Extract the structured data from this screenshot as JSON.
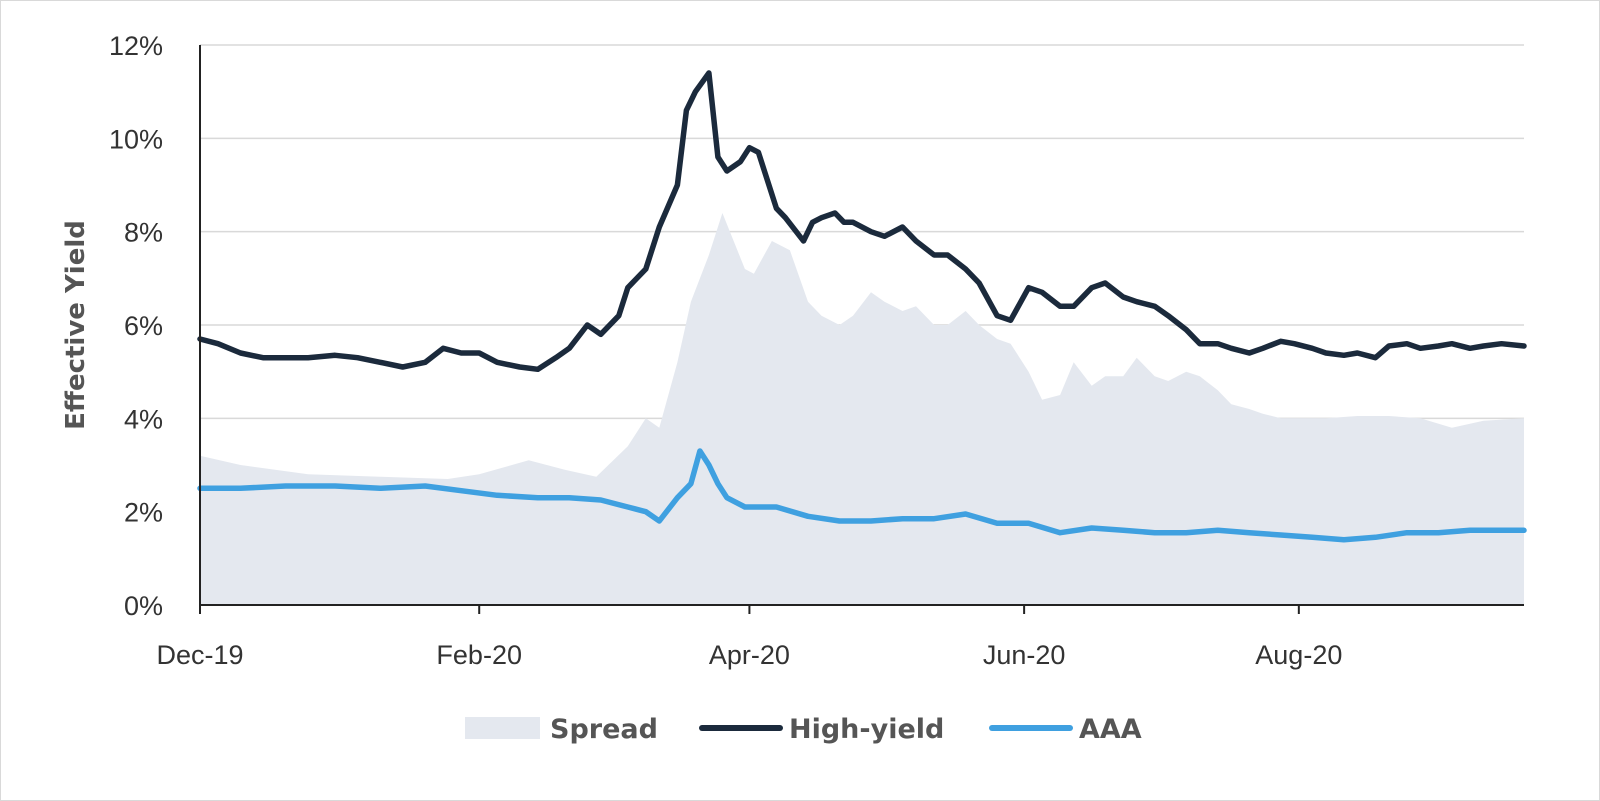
{
  "chart_data": {
    "type": "line",
    "title": "",
    "ylabel": "Effective Yield",
    "xlabel": "",
    "ylim": [
      0,
      12
    ],
    "y_ticks": [
      0,
      2,
      4,
      6,
      8,
      10,
      12
    ],
    "y_tick_labels": [
      "0%",
      "2%",
      "4%",
      "6%",
      "8%",
      "10%",
      "12%"
    ],
    "x_range": [
      "2019-12-01",
      "2020-09-20"
    ],
    "x_ticks": [
      "2019-12-01",
      "2020-02-01",
      "2020-04-01",
      "2020-06-01",
      "2020-08-01"
    ],
    "x_tick_labels": [
      "Dec-19",
      "Feb-20",
      "Apr-20",
      "Jun-20",
      "Aug-20"
    ],
    "grid": "horizontal",
    "legend_position": "bottom",
    "series": [
      {
        "name": "Spread",
        "kind": "area",
        "color": "#e4e8ef",
        "x": [
          "2019-12-01",
          "2019-12-10",
          "2019-12-25",
          "2020-01-10",
          "2020-01-25",
          "2020-02-01",
          "2020-02-12",
          "2020-02-20",
          "2020-02-27",
          "2020-03-05",
          "2020-03-09",
          "2020-03-12",
          "2020-03-16",
          "2020-03-19",
          "2020-03-23",
          "2020-03-26",
          "2020-03-31",
          "2020-04-02",
          "2020-04-06",
          "2020-04-10",
          "2020-04-14",
          "2020-04-17",
          "2020-04-21",
          "2020-04-24",
          "2020-04-28",
          "2020-05-01",
          "2020-05-05",
          "2020-05-08",
          "2020-05-12",
          "2020-05-15",
          "2020-05-19",
          "2020-05-22",
          "2020-05-26",
          "2020-05-29",
          "2020-06-02",
          "2020-06-05",
          "2020-06-09",
          "2020-06-12",
          "2020-06-16",
          "2020-06-19",
          "2020-06-23",
          "2020-06-26",
          "2020-06-30",
          "2020-07-03",
          "2020-07-07",
          "2020-07-10",
          "2020-07-14",
          "2020-07-17",
          "2020-07-21",
          "2020-07-24",
          "2020-07-28",
          "2020-07-31",
          "2020-08-07",
          "2020-08-14",
          "2020-08-21",
          "2020-08-28",
          "2020-09-04",
          "2020-09-11",
          "2020-09-20"
        ],
        "values": [
          3.2,
          3.0,
          2.8,
          2.75,
          2.7,
          2.8,
          3.1,
          2.9,
          2.75,
          3.4,
          4.0,
          3.8,
          5.2,
          6.5,
          7.5,
          8.4,
          7.2,
          7.1,
          7.8,
          7.6,
          6.5,
          6.2,
          6.0,
          6.2,
          6.7,
          6.5,
          6.3,
          6.4,
          6.0,
          6.0,
          6.3,
          6.0,
          5.7,
          5.6,
          5.0,
          4.4,
          4.5,
          5.2,
          4.7,
          4.9,
          4.9,
          5.3,
          4.9,
          4.8,
          5.0,
          4.9,
          4.6,
          4.3,
          4.2,
          4.1,
          4.0,
          4.0,
          4.0,
          4.05,
          4.05,
          4.0,
          3.8,
          3.95,
          4.0
        ]
      },
      {
        "name": "High-yield",
        "kind": "line",
        "color": "#1b2a3c",
        "x": [
          "2019-12-01",
          "2019-12-05",
          "2019-12-10",
          "2019-12-15",
          "2019-12-20",
          "2019-12-25",
          "2019-12-31",
          "2020-01-05",
          "2020-01-10",
          "2020-01-15",
          "2020-01-20",
          "2020-01-24",
          "2020-01-28",
          "2020-02-01",
          "2020-02-05",
          "2020-02-10",
          "2020-02-14",
          "2020-02-18",
          "2020-02-21",
          "2020-02-25",
          "2020-02-28",
          "2020-03-03",
          "2020-03-05",
          "2020-03-09",
          "2020-03-12",
          "2020-03-16",
          "2020-03-18",
          "2020-03-20",
          "2020-03-23",
          "2020-03-25",
          "2020-03-27",
          "2020-03-30",
          "2020-04-01",
          "2020-04-03",
          "2020-04-07",
          "2020-04-09",
          "2020-04-13",
          "2020-04-15",
          "2020-04-17",
          "2020-04-20",
          "2020-04-22",
          "2020-04-24",
          "2020-04-28",
          "2020-05-01",
          "2020-05-05",
          "2020-05-08",
          "2020-05-12",
          "2020-05-15",
          "2020-05-19",
          "2020-05-22",
          "2020-05-26",
          "2020-05-29",
          "2020-06-02",
          "2020-06-05",
          "2020-06-09",
          "2020-06-12",
          "2020-06-16",
          "2020-06-19",
          "2020-06-23",
          "2020-06-26",
          "2020-06-30",
          "2020-07-03",
          "2020-07-07",
          "2020-07-10",
          "2020-07-14",
          "2020-07-17",
          "2020-07-21",
          "2020-07-24",
          "2020-07-28",
          "2020-07-31",
          "2020-08-04",
          "2020-08-07",
          "2020-08-11",
          "2020-08-14",
          "2020-08-18",
          "2020-08-21",
          "2020-08-25",
          "2020-08-28",
          "2020-09-01",
          "2020-09-04",
          "2020-09-08",
          "2020-09-11",
          "2020-09-15",
          "2020-09-20"
        ],
        "values": [
          5.7,
          5.6,
          5.4,
          5.3,
          5.3,
          5.3,
          5.35,
          5.3,
          5.2,
          5.1,
          5.2,
          5.5,
          5.4,
          5.4,
          5.2,
          5.1,
          5.05,
          5.3,
          5.5,
          6.0,
          5.8,
          6.2,
          6.8,
          7.2,
          8.1,
          9.0,
          10.6,
          11.0,
          11.4,
          9.6,
          9.3,
          9.5,
          9.8,
          9.7,
          8.5,
          8.3,
          7.8,
          8.2,
          8.3,
          8.4,
          8.2,
          8.2,
          8.0,
          7.9,
          8.1,
          7.8,
          7.5,
          7.5,
          7.2,
          6.9,
          6.2,
          6.1,
          6.8,
          6.7,
          6.4,
          6.4,
          6.8,
          6.9,
          6.6,
          6.5,
          6.4,
          6.2,
          5.9,
          5.6,
          5.6,
          5.5,
          5.4,
          5.5,
          5.65,
          5.6,
          5.5,
          5.4,
          5.35,
          5.4,
          5.3,
          5.55,
          5.6,
          5.5,
          5.55,
          5.6,
          5.5,
          5.55,
          5.6,
          5.55
        ]
      },
      {
        "name": "AAA",
        "kind": "line",
        "color": "#3fa0e0",
        "x": [
          "2019-12-01",
          "2019-12-10",
          "2019-12-20",
          "2019-12-31",
          "2020-01-10",
          "2020-01-20",
          "2020-01-28",
          "2020-02-05",
          "2020-02-14",
          "2020-02-21",
          "2020-02-28",
          "2020-03-05",
          "2020-03-09",
          "2020-03-12",
          "2020-03-16",
          "2020-03-19",
          "2020-03-21",
          "2020-03-23",
          "2020-03-25",
          "2020-03-27",
          "2020-03-31",
          "2020-04-03",
          "2020-04-07",
          "2020-04-14",
          "2020-04-21",
          "2020-04-28",
          "2020-05-05",
          "2020-05-12",
          "2020-05-19",
          "2020-05-26",
          "2020-06-02",
          "2020-06-09",
          "2020-06-16",
          "2020-06-23",
          "2020-06-30",
          "2020-07-07",
          "2020-07-14",
          "2020-07-21",
          "2020-07-28",
          "2020-08-04",
          "2020-08-11",
          "2020-08-18",
          "2020-08-25",
          "2020-09-01",
          "2020-09-08",
          "2020-09-15",
          "2020-09-20"
        ],
        "values": [
          2.5,
          2.5,
          2.55,
          2.55,
          2.5,
          2.55,
          2.45,
          2.35,
          2.3,
          2.3,
          2.25,
          2.1,
          2.0,
          1.8,
          2.3,
          2.6,
          3.3,
          3.0,
          2.6,
          2.3,
          2.1,
          2.1,
          2.1,
          1.9,
          1.8,
          1.8,
          1.85,
          1.85,
          1.95,
          1.75,
          1.75,
          1.55,
          1.65,
          1.6,
          1.55,
          1.55,
          1.6,
          1.55,
          1.5,
          1.45,
          1.4,
          1.45,
          1.55,
          1.55,
          1.6,
          1.6,
          1.6
        ]
      }
    ]
  }
}
